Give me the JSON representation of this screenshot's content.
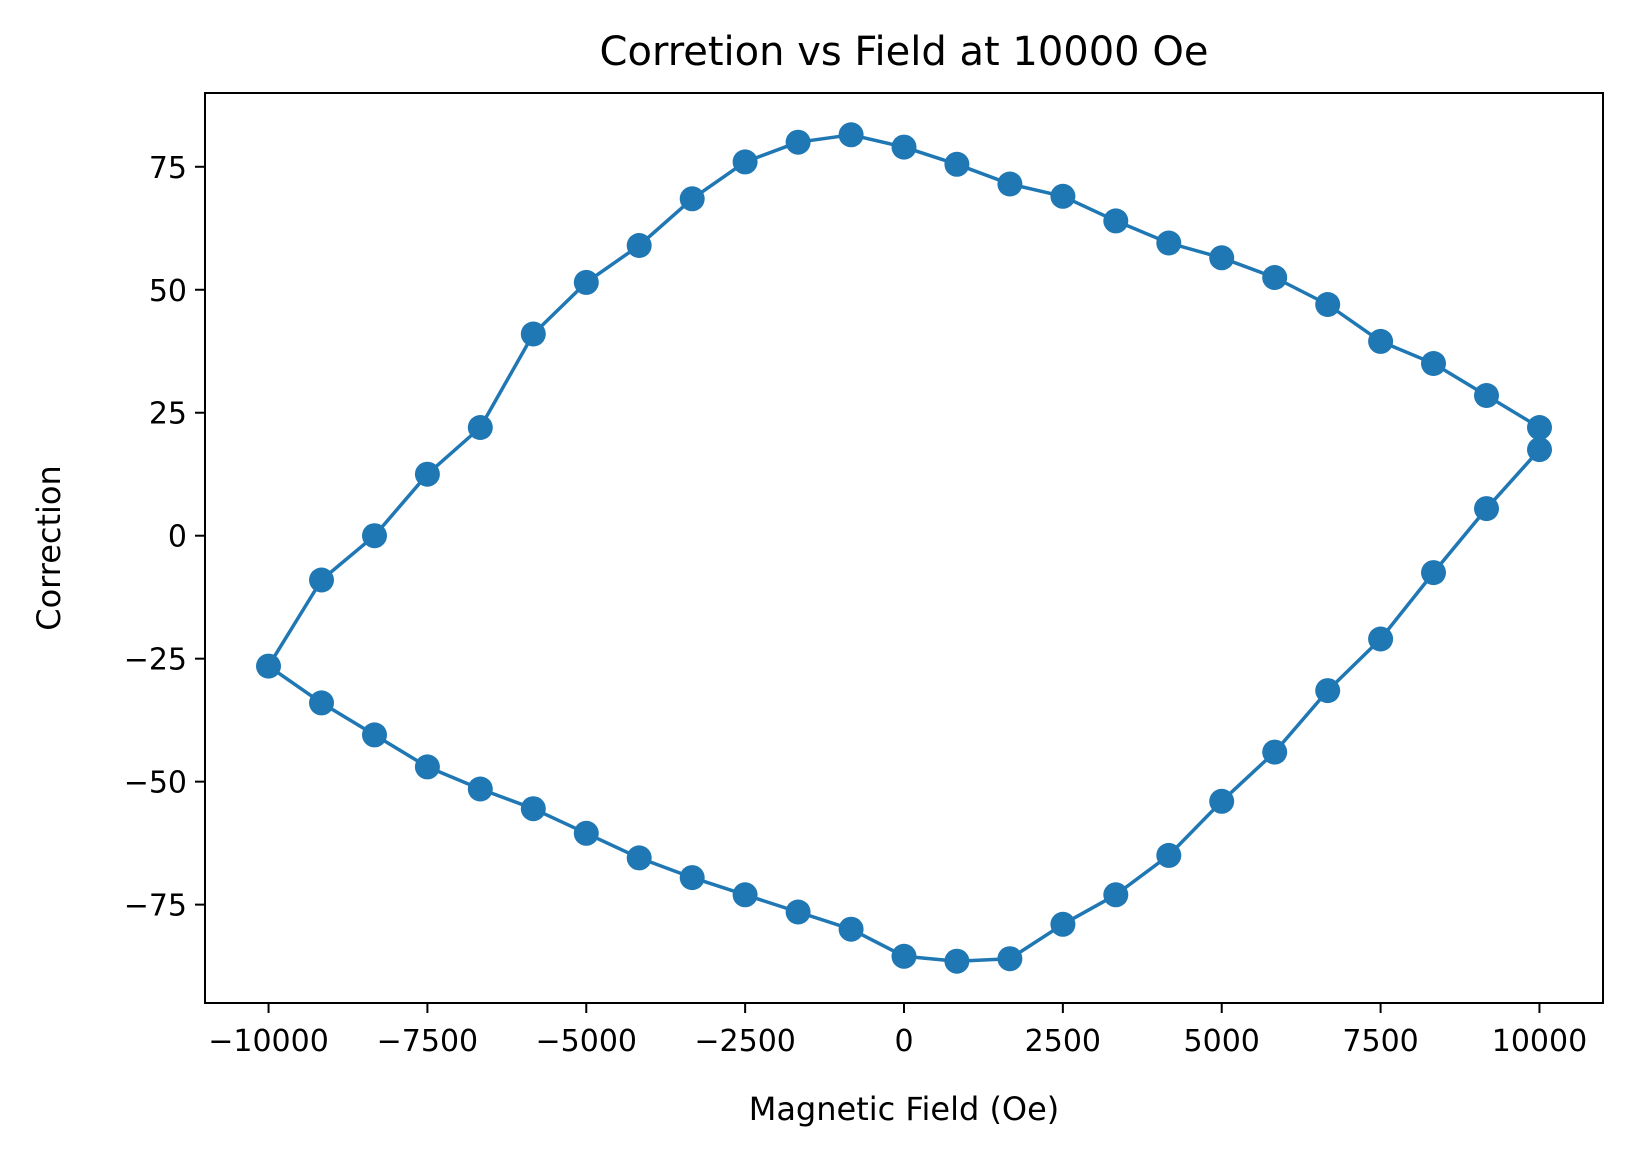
{
  "chart_data": {
    "type": "line",
    "title": "Corretion vs Field at 10000 Oe",
    "xlabel": "Magnetic Field (Oe)",
    "ylabel": "Correction",
    "xlim": [
      -11000,
      11000
    ],
    "ylim": [
      -95,
      90
    ],
    "xticks": [
      -10000,
      -7500,
      -5000,
      -2500,
      0,
      2500,
      5000,
      7500,
      10000
    ],
    "xtick_labels": [
      "−10000",
      "−7500",
      "−5000",
      "−2500",
      "0",
      "2500",
      "5000",
      "7500",
      "10000"
    ],
    "yticks": [
      -75,
      -50,
      -25,
      0,
      25,
      50,
      75
    ],
    "ytick_labels": [
      "−75",
      "−50",
      "−25",
      "0",
      "25",
      "50",
      "75"
    ],
    "grid": false,
    "series": [
      {
        "color": "#1f77b4",
        "marker": "circle",
        "x": [
          10000,
          9167,
          8333,
          7500,
          6667,
          5833,
          5000,
          4167,
          3333,
          2500,
          1667,
          833,
          0,
          -833,
          -1667,
          -2500,
          -3333,
          -4167,
          -5000,
          -5833,
          -6667,
          -7500,
          -8333,
          -9167,
          -10000,
          -9167,
          -8333,
          -7500,
          -6667,
          -5833,
          -5000,
          -4167,
          -3333,
          -2500,
          -1667,
          -833,
          0,
          833,
          1667,
          2500,
          3333,
          4167,
          5000,
          5833,
          6667,
          7500,
          8333,
          9167,
          10000
        ],
        "y": [
          22,
          28.5,
          35,
          39.5,
          47,
          52.5,
          56.5,
          59.5,
          64,
          69,
          71.5,
          75.5,
          79,
          81.5,
          80,
          76,
          68.5,
          59,
          51.5,
          41,
          22,
          12.5,
          0,
          -9,
          -26.5,
          -34,
          -40.5,
          -47,
          -51.5,
          -55.5,
          -60.5,
          -65.5,
          -69.5,
          -73,
          -76.5,
          -80,
          -85.5,
          -86.5,
          -86,
          -79,
          -73,
          -65,
          -54,
          -44,
          -31.5,
          -21,
          -7.5,
          5.5,
          17.5
        ]
      }
    ]
  }
}
